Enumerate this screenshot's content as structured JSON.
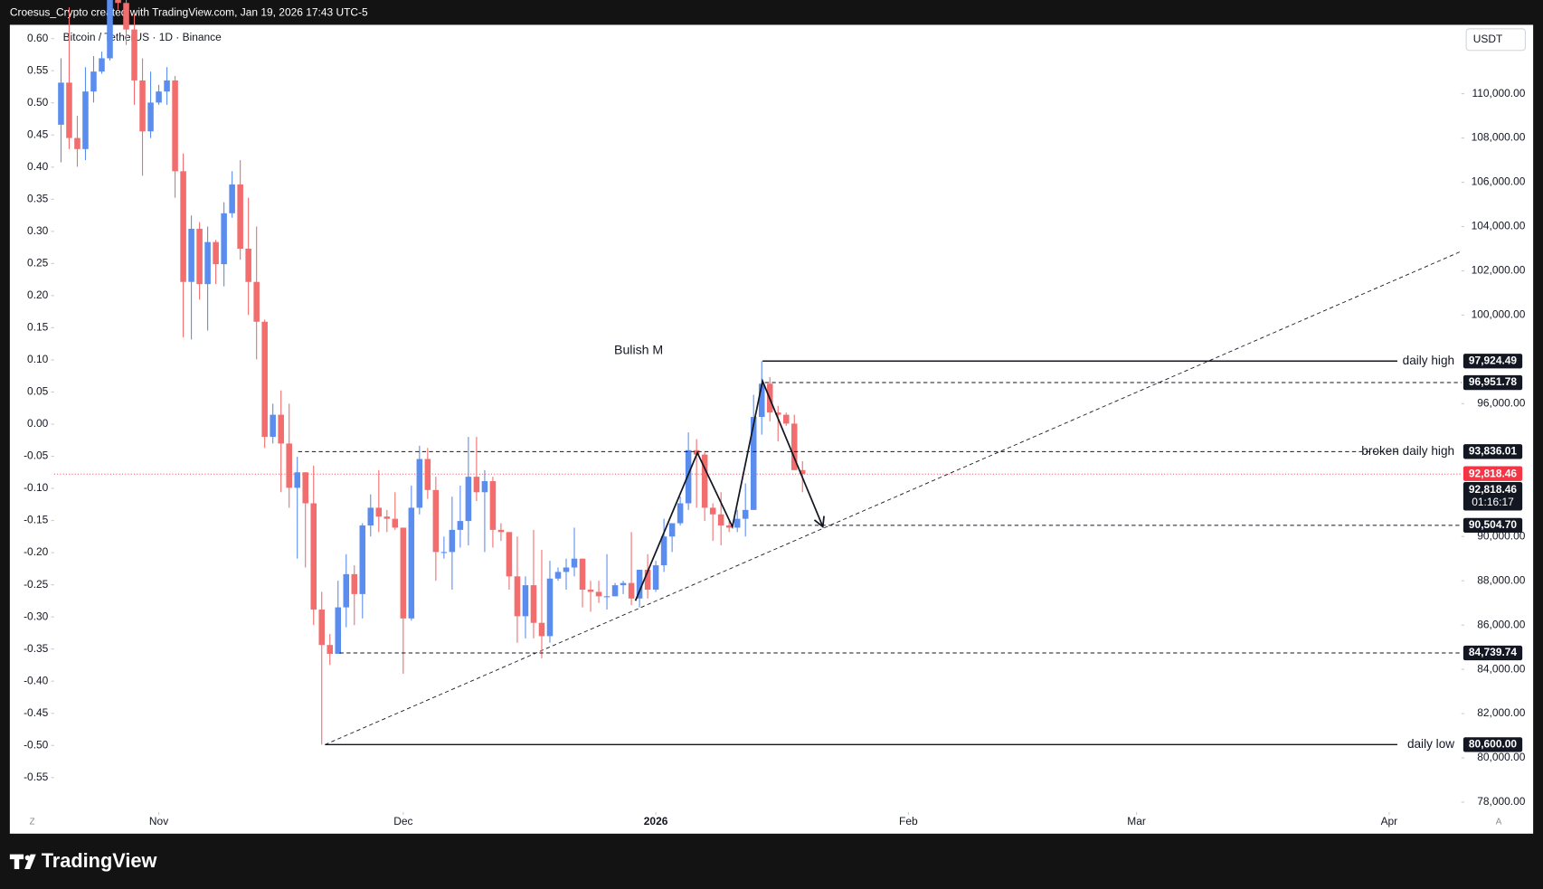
{
  "page": {
    "attribution": "Croesus_Crypto created with TradingView.com, Jan 19, 2026 17:43 UTC-5",
    "brand": "TradingView",
    "currency": "USDT",
    "left_corner": "Z",
    "right_corner": "A"
  },
  "chart_data": {
    "type": "candlestick",
    "title": "Bitcoin / TetherUS · 1D · Binance",
    "up_color": "#5b8def",
    "down_color": "#f26d6d",
    "open": [
      108600,
      110500,
      108000,
      107500,
      110100,
      111000,
      111600,
      114500,
      114100,
      112900,
      110600,
      108300,
      109600,
      110100,
      110600,
      106500,
      101500,
      103900,
      101400,
      103300,
      102300,
      104600,
      105900,
      103000,
      101500,
      99700,
      94500,
      95500,
      94200,
      92200,
      92900,
      91500,
      86700,
      85100,
      84700,
      86800,
      88300,
      87400,
      90500,
      91300,
      90900,
      90800,
      90400,
      86300,
      91300,
      93500,
      92100,
      89300,
      89300,
      90300,
      90700,
      92700,
      92000,
      92500,
      90300,
      90200,
      88200,
      86400,
      87800,
      86100,
      85500,
      88100,
      88400,
      88600,
      89000,
      87600,
      87500,
      87300,
      87300,
      87800,
      87900,
      87200,
      88500,
      87600,
      88700,
      90000,
      90600,
      91500,
      93900,
      93700,
      91300,
      91000,
      90500,
      90400,
      90800,
      91200,
      95400,
      96900,
      95600,
      95500,
      95100,
      93000
    ],
    "high": [
      111600,
      113900,
      109000,
      111200,
      111700,
      111900,
      114600,
      116100,
      116000,
      113600,
      111600,
      111000,
      110400,
      111200,
      110800,
      107300,
      104500,
      104200,
      104000,
      103400,
      105100,
      106500,
      107000,
      105300,
      104000,
      99800,
      96000,
      96600,
      96000,
      93600,
      92900,
      93200,
      87500,
      85600,
      88000,
      89200,
      88700,
      90600,
      91900,
      93000,
      91200,
      92000,
      90400,
      92300,
      94100,
      94000,
      92700,
      90000,
      91800,
      92300,
      94500,
      94500,
      93000,
      92700,
      90600,
      90200,
      90000,
      88200,
      90300,
      89400,
      88900,
      88600,
      89000,
      90400,
      89000,
      88000,
      88000,
      89200,
      87900,
      88000,
      90200,
      88500,
      89200,
      88900,
      90800,
      90600,
      91800,
      94700,
      94400,
      93800,
      91500,
      92000,
      90700,
      91200,
      92400,
      96400,
      97924.49,
      97200,
      95900,
      95600,
      95500,
      93400
    ],
    "low": [
      106900,
      107500,
      106700,
      107000,
      109600,
      110900,
      111500,
      113800,
      112200,
      109500,
      106300,
      108000,
      109500,
      109500,
      105300,
      99000,
      98900,
      100700,
      99300,
      101400,
      101300,
      104400,
      102500,
      100000,
      98000,
      94000,
      94200,
      92000,
      91300,
      89000,
      88600,
      86000,
      80600,
      84200,
      84700,
      85900,
      86000,
      86300,
      90000,
      90200,
      90200,
      90300,
      83800,
      86200,
      91000,
      91700,
      88000,
      89000,
      87600,
      89500,
      89600,
      91600,
      89300,
      89500,
      89800,
      87600,
      85200,
      85400,
      85400,
      84500,
      85200,
      88000,
      87600,
      88200,
      86800,
      86600,
      87000,
      86700,
      87300,
      87400,
      86900,
      86800,
      87200,
      87500,
      88400,
      89300,
      90500,
      91200,
      91300,
      90700,
      89800,
      89600,
      90200,
      90200,
      90000,
      91200,
      94600,
      95200,
      94300,
      95000,
      93000,
      92000
    ],
    "close": [
      110500,
      108000,
      107500,
      110100,
      111000,
      111600,
      114500,
      114100,
      112900,
      110600,
      108300,
      109600,
      110100,
      110600,
      106500,
      101500,
      103900,
      101400,
      103300,
      102300,
      104600,
      105900,
      103000,
      101500,
      99700,
      94500,
      95500,
      94200,
      92200,
      92900,
      91500,
      86700,
      85100,
      84700,
      86800,
      88300,
      87400,
      90500,
      91300,
      90900,
      90800,
      90400,
      86300,
      91300,
      93500,
      92100,
      89300,
      89300,
      90300,
      90700,
      92700,
      92000,
      92500,
      90300,
      90200,
      88200,
      86400,
      87800,
      86100,
      85500,
      88100,
      88400,
      88600,
      89000,
      87600,
      87500,
      87300,
      87300,
      87800,
      87900,
      87200,
      88500,
      87600,
      88700,
      90000,
      90600,
      91500,
      93900,
      93700,
      91300,
      91000,
      90500,
      90400,
      90800,
      91200,
      95400,
      96900,
      95600,
      95500,
      95100,
      93000,
      92818.46
    ],
    "xlim": [
      -6.28,
      171.86
    ],
    "xticks": [
      {
        "value": 12,
        "label": "Nov"
      },
      {
        "value": 42,
        "label": "Dec"
      },
      {
        "value": 73,
        "label": "2026"
      },
      {
        "value": 104,
        "label": "Feb"
      },
      {
        "value": 132,
        "label": "Mar"
      },
      {
        "value": 163,
        "label": "Apr"
      }
    ],
    "ylim": [
      77556,
      113111
    ],
    "yticks": [
      {
        "value": 110000,
        "label": "110,000.00"
      },
      {
        "value": 108000,
        "label": "108,000.00"
      },
      {
        "value": 106000,
        "label": "106,000.00"
      },
      {
        "value": 104000,
        "label": "104,000.00"
      },
      {
        "value": 102000,
        "label": "102,000.00"
      },
      {
        "value": 100000,
        "label": "100,000.00"
      },
      {
        "value": 96000,
        "label": "96,000.00"
      },
      {
        "value": 90000,
        "label": "90,000.00"
      },
      {
        "value": 88000,
        "label": "88,000.00"
      },
      {
        "value": 86000,
        "label": "86,000.00"
      },
      {
        "value": 84000,
        "label": "84,000.00"
      },
      {
        "value": 82000,
        "label": "82,000.00"
      },
      {
        "value": 80000,
        "label": "80,000.00"
      },
      {
        "value": 78000,
        "label": "78,000.00"
      }
    ],
    "y2lim": [
      -0.6036,
      0.6214
    ],
    "y2ticks": [
      {
        "value": 0.6,
        "label": "0.60"
      },
      0.55,
      {
        "value": 0.5,
        "label": "0.50"
      },
      0.45,
      {
        "value": 0.4,
        "label": "0.40"
      },
      0.35,
      {
        "value": 0.3,
        "label": "0.30"
      },
      0.25,
      {
        "value": 0.2,
        "label": "0.20"
      },
      0.15,
      {
        "value": 0.1,
        "label": "0.10"
      },
      0.05,
      {
        "value": 0,
        "label": "0.00"
      },
      -0.05,
      {
        "value": -0.1,
        "label": "-0.10"
      },
      -0.15,
      {
        "value": -0.2,
        "label": "-0.20"
      },
      -0.25,
      {
        "value": -0.3,
        "label": "-0.30"
      },
      -0.35,
      {
        "value": -0.4,
        "label": "-0.40"
      },
      -0.45,
      {
        "value": -0.5,
        "label": "-0.50"
      },
      -0.55
    ],
    "levels": [
      {
        "value": 97924.49,
        "label": "97,924.49",
        "name": "daily high",
        "from": 86.1,
        "style": "solid"
      },
      {
        "value": 96951.78,
        "label": "96,951.78",
        "from": 86.4,
        "style": "dashed"
      },
      {
        "value": 93836.01,
        "label": "93,836.01",
        "name": "broken daily high",
        "from": 29.1,
        "style": "dashed"
      },
      {
        "value": 90504.7,
        "label": "90,504.70",
        "from": 84.9,
        "style": "dashed"
      },
      {
        "value": 84739.74,
        "label": "84,739.74",
        "from": 34.2,
        "style": "dashed"
      },
      {
        "value": 80600,
        "label": "80,600.00",
        "name": "daily low",
        "from": 32.4,
        "style": "solid"
      }
    ],
    "last_price": 92818.46,
    "last_price_label": "92,818.46",
    "countdown": "01:16:17",
    "trendline": {
      "from": [
        32.4,
        80600
      ],
      "to": [
        171.9,
        102890
      ]
    },
    "pattern": {
      "label": "Bulish M",
      "points": [
        [
          70.5,
          87100
        ],
        [
          78.1,
          93780
        ],
        [
          82.4,
          90440
        ],
        [
          86.1,
          97020
        ],
        [
          93.5,
          90440
        ]
      ]
    }
  }
}
